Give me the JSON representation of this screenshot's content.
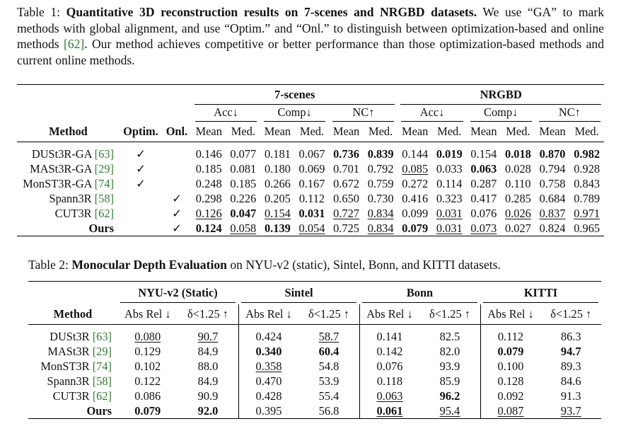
{
  "table1": {
    "caption_label": "Table 1:",
    "caption_title": "Quantitative 3D reconstruction results on 7-scenes and NRGBD datasets.",
    "caption_text_a": "We use “GA” to mark methods with global alignment, and use “Optim.” and “Onl.” to distinguish between optimization-based and online methods",
    "caption_cite": "[62]",
    "caption_text_b": ". Our method achieves competitive or better performance than those optimization-based methods and current online methods.",
    "group_7scenes": "7-scenes",
    "group_nrgbd": "NRGBD",
    "metric_acc": "Acc↓",
    "metric_comp": "Comp↓",
    "metric_nc": "NC↑",
    "col_method": "Method",
    "col_optim": "Optim.",
    "col_onl": "Onl.",
    "col_mean": "Mean",
    "col_med": "Med.",
    "check": "✓",
    "rows": [
      {
        "name": "DUSt3R-GA ",
        "cite": "[63]",
        "optim": "✓",
        "onl": "",
        "cells": [
          [
            "0.146",
            ""
          ],
          [
            "0.077",
            ""
          ],
          [
            "0.181",
            ""
          ],
          [
            "0.067",
            ""
          ],
          [
            "0.736",
            "b"
          ],
          [
            "0.839",
            "b"
          ],
          [
            "0.144",
            ""
          ],
          [
            "0.019",
            "b"
          ],
          [
            "0.154",
            ""
          ],
          [
            "0.018",
            "b"
          ],
          [
            "0.870",
            "b"
          ],
          [
            "0.982",
            "b"
          ]
        ]
      },
      {
        "name": "MASt3R-GA ",
        "cite": "[29]",
        "optim": "✓",
        "onl": "",
        "cells": [
          [
            "0.185",
            ""
          ],
          [
            "0.081",
            ""
          ],
          [
            "0.180",
            ""
          ],
          [
            "0.069",
            ""
          ],
          [
            "0.701",
            ""
          ],
          [
            "0.792",
            ""
          ],
          [
            "0.085",
            "u"
          ],
          [
            "0.033",
            ""
          ],
          [
            "0.063",
            "b"
          ],
          [
            "0.028",
            ""
          ],
          [
            "0.794",
            ""
          ],
          [
            "0.928",
            ""
          ]
        ]
      },
      {
        "name": "MonST3R-GA ",
        "cite": "[74]",
        "optim": "✓",
        "onl": "",
        "cells": [
          [
            "0.248",
            ""
          ],
          [
            "0.185",
            ""
          ],
          [
            "0.266",
            ""
          ],
          [
            "0.167",
            ""
          ],
          [
            "0.672",
            ""
          ],
          [
            "0.759",
            ""
          ],
          [
            "0.272",
            ""
          ],
          [
            "0.114",
            ""
          ],
          [
            "0.287",
            ""
          ],
          [
            "0.110",
            ""
          ],
          [
            "0.758",
            ""
          ],
          [
            "0.843",
            ""
          ]
        ]
      },
      {
        "name": "Spann3R ",
        "cite": "[58]",
        "optim": "",
        "onl": "✓",
        "cells": [
          [
            "0.298",
            ""
          ],
          [
            "0.226",
            ""
          ],
          [
            "0.205",
            ""
          ],
          [
            "0.112",
            ""
          ],
          [
            "0.650",
            ""
          ],
          [
            "0.730",
            ""
          ],
          [
            "0.416",
            ""
          ],
          [
            "0.323",
            ""
          ],
          [
            "0.417",
            ""
          ],
          [
            "0.285",
            ""
          ],
          [
            "0.684",
            ""
          ],
          [
            "0.789",
            ""
          ]
        ]
      },
      {
        "name": "CUT3R ",
        "cite": "[62]",
        "optim": "",
        "onl": "✓",
        "cells": [
          [
            "0.126",
            "u"
          ],
          [
            "0.047",
            "b"
          ],
          [
            "0.154",
            "u"
          ],
          [
            "0.031",
            "b"
          ],
          [
            "0.727",
            "u"
          ],
          [
            "0.834",
            "u"
          ],
          [
            "0.099",
            ""
          ],
          [
            "0.031",
            "u"
          ],
          [
            "0.076",
            ""
          ],
          [
            "0.026",
            "u"
          ],
          [
            "0.837",
            "u"
          ],
          [
            "0.971",
            "u"
          ]
        ]
      },
      {
        "name": "Ours",
        "cite": "",
        "optim": "",
        "onl": "✓",
        "bold": true,
        "cells": [
          [
            "0.124",
            "b"
          ],
          [
            "0.058",
            "u"
          ],
          [
            "0.139",
            "b"
          ],
          [
            "0.054",
            "u"
          ],
          [
            "0.725",
            ""
          ],
          [
            "0.834",
            "u"
          ],
          [
            "0.079",
            "b"
          ],
          [
            "0.031",
            "u"
          ],
          [
            "0.073",
            "u"
          ],
          [
            "0.027",
            ""
          ],
          [
            "0.824",
            ""
          ],
          [
            "0.965",
            ""
          ]
        ]
      }
    ]
  },
  "table2": {
    "caption_label": "Table 2:",
    "caption_title": "Monocular Depth Evaluation",
    "caption_text": " on NYU-v2 (static), Sintel, Bonn, and KITTI datasets.",
    "groups": [
      "NYU-v2 (Static)",
      "Sintel",
      "Bonn",
      "KITTI"
    ],
    "col_method": "Method",
    "col_absrel": "Abs Rel ↓",
    "col_delta": "δ<1.25 ↑",
    "rows": [
      {
        "name": "DUSt3R ",
        "cite": "[63]",
        "cells": [
          [
            "0.080",
            "u"
          ],
          [
            "90.7",
            "u"
          ],
          [
            "0.424",
            ""
          ],
          [
            "58.7",
            "u"
          ],
          [
            "0.141",
            ""
          ],
          [
            "82.5",
            ""
          ],
          [
            "0.112",
            ""
          ],
          [
            "86.3",
            ""
          ]
        ]
      },
      {
        "name": "MASt3R ",
        "cite": "[29]",
        "cells": [
          [
            "0.129",
            ""
          ],
          [
            "84.9",
            ""
          ],
          [
            "0.340",
            "b"
          ],
          [
            "60.4",
            "b"
          ],
          [
            "0.142",
            ""
          ],
          [
            "82.0",
            ""
          ],
          [
            "0.079",
            "b"
          ],
          [
            "94.7",
            "b"
          ]
        ]
      },
      {
        "name": "MonST3R ",
        "cite": "[74]",
        "cells": [
          [
            "0.102",
            ""
          ],
          [
            "88.0",
            ""
          ],
          [
            "0.358",
            "u"
          ],
          [
            "54.8",
            ""
          ],
          [
            "0.076",
            ""
          ],
          [
            "93.9",
            ""
          ],
          [
            "0.100",
            ""
          ],
          [
            "89.3",
            ""
          ]
        ]
      },
      {
        "name": "Spann3R ",
        "cite": "[58]",
        "cells": [
          [
            "0.122",
            ""
          ],
          [
            "84.9",
            ""
          ],
          [
            "0.470",
            ""
          ],
          [
            "53.9",
            ""
          ],
          [
            "0.118",
            ""
          ],
          [
            "85.9",
            ""
          ],
          [
            "0.128",
            ""
          ],
          [
            "84.6",
            ""
          ]
        ]
      },
      {
        "name": "CUT3R ",
        "cite": "[62]",
        "cells": [
          [
            "0.086",
            ""
          ],
          [
            "90.9",
            ""
          ],
          [
            "0.428",
            ""
          ],
          [
            "55.4",
            ""
          ],
          [
            "0.063",
            "u"
          ],
          [
            "96.2",
            "b"
          ],
          [
            "0.092",
            ""
          ],
          [
            "91.3",
            ""
          ]
        ]
      },
      {
        "name": "Ours",
        "cite": "",
        "bold": true,
        "cells": [
          [
            "0.079",
            "b"
          ],
          [
            "92.0",
            "b"
          ],
          [
            "0.395",
            ""
          ],
          [
            "56.8",
            ""
          ],
          [
            "0.061",
            "bu"
          ],
          [
            "95.4",
            "u"
          ],
          [
            "0.087",
            "u"
          ],
          [
            "93.7",
            "u"
          ]
        ]
      }
    ]
  }
}
